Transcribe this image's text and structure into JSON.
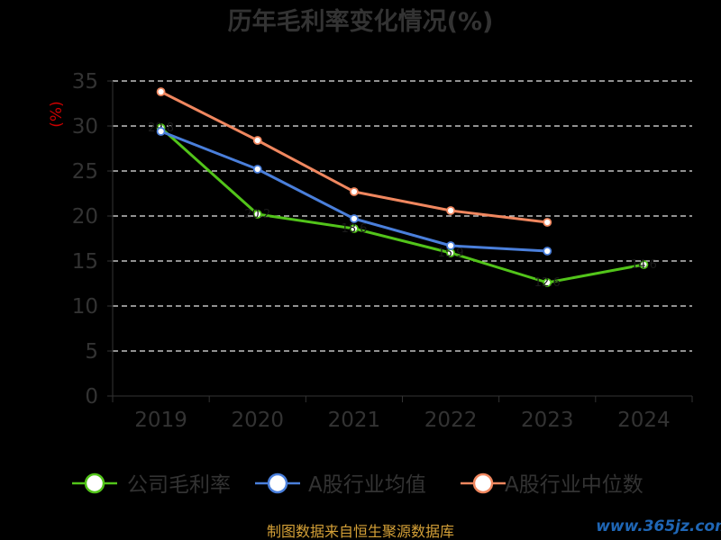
{
  "chart_data": {
    "type": "line",
    "title": "历年毛利率变化情况(%)",
    "ylabel": "(%)",
    "xlabel": "",
    "categories": [
      "2019",
      "2020",
      "2021",
      "2022",
      "2023",
      "2024"
    ],
    "ylim": [
      0,
      35
    ],
    "yticks": [
      0,
      5,
      10,
      15,
      20,
      25,
      30,
      35
    ],
    "grid": true,
    "legend_position": "bottom",
    "series": [
      {
        "name": "公司毛利率",
        "color": "#52c41a",
        "values": [
          29.8,
          20.2,
          18.6,
          15.9,
          12.6,
          14.6
        ]
      },
      {
        "name": "A股行业均值",
        "color": "#4a7fdb",
        "values": [
          29.4,
          25.2,
          19.7,
          16.7,
          16.1,
          null
        ]
      },
      {
        "name": "A股行业中位数",
        "color": "#f0875f",
        "values": [
          33.8,
          28.4,
          22.7,
          20.6,
          19.3,
          null
        ]
      }
    ],
    "source": "制图数据来自恒生聚源数据库",
    "watermark": "www.365jz.com"
  }
}
